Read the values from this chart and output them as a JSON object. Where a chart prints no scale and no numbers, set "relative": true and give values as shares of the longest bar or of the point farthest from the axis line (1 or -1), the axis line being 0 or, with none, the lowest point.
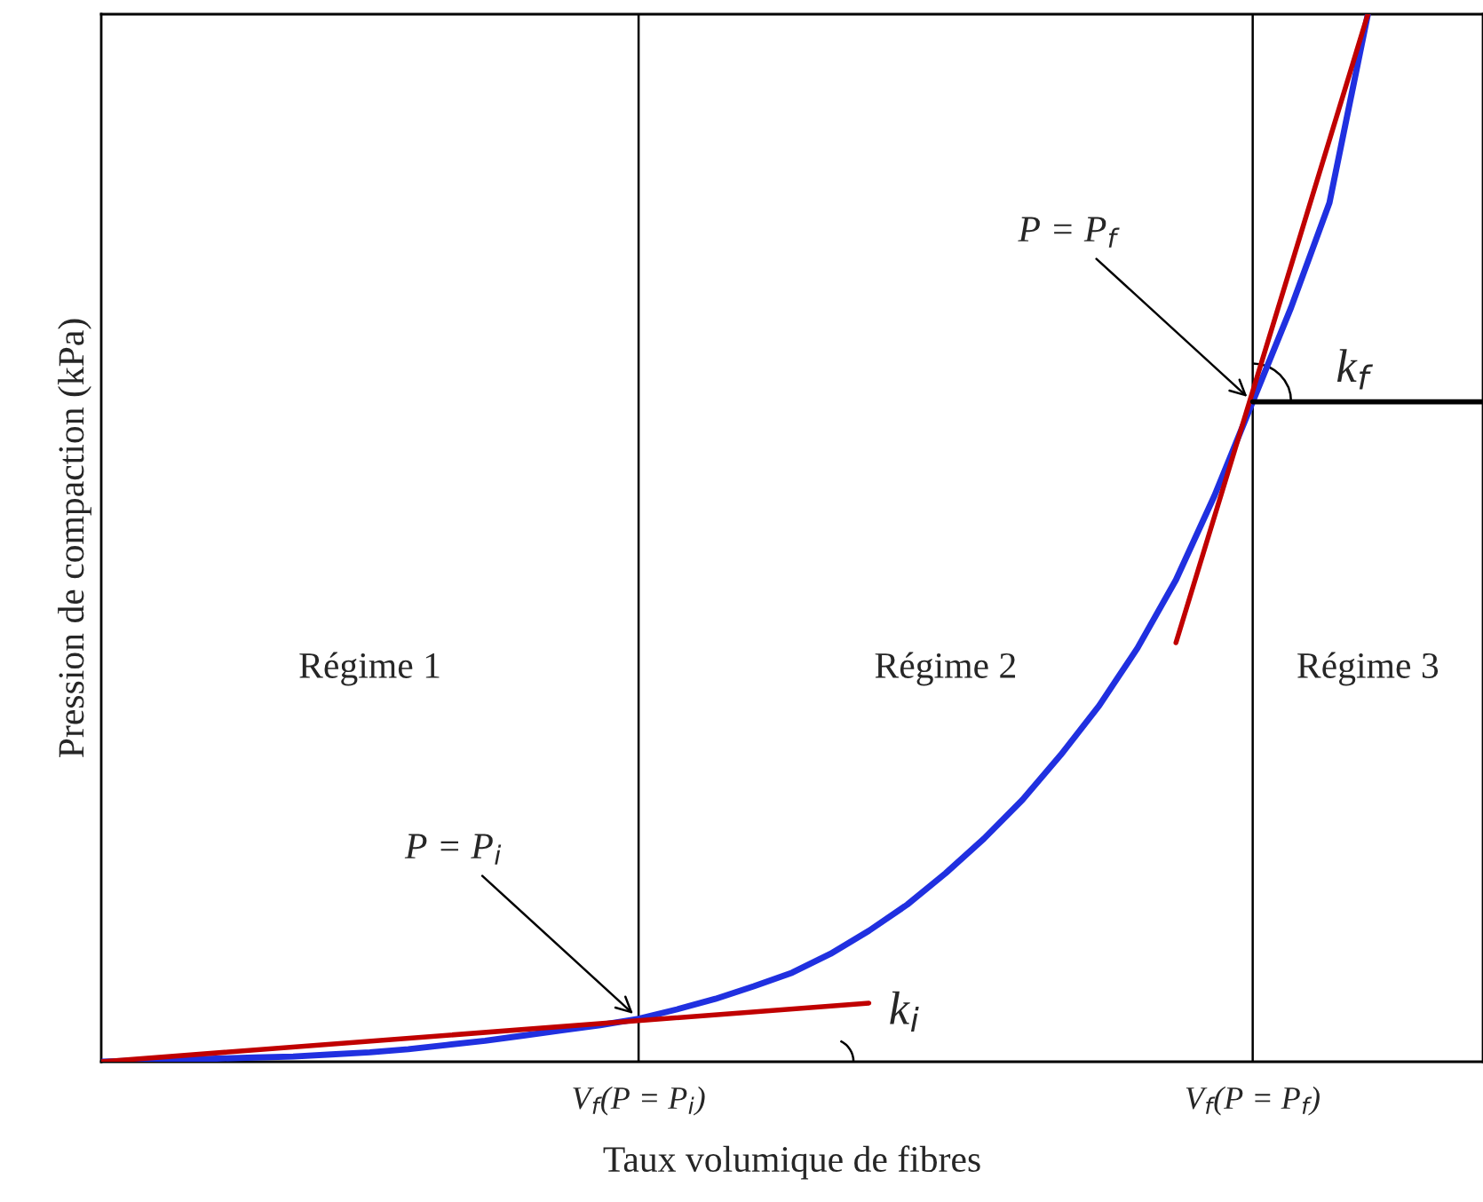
{
  "chart_data": {
    "type": "line",
    "relative": true,
    "xlabel": "Taux volumique de fibres",
    "ylabel": "Pression de compaction (kPa)",
    "categories": [
      null,
      null,
      null,
      null,
      null,
      null,
      null,
      null,
      null,
      null,
      null,
      null,
      null,
      null,
      "V$_{f}$(P = P$_{i}$)",
      null,
      null,
      null,
      null,
      null,
      null,
      null,
      null,
      null,
      null,
      null,
      null,
      null,
      null,
      null,
      "V$_{f}$(P = P$_{f}$)",
      null,
      null,
      null,
      null,
      null,
      null
    ],
    "tick_labels": "x",
    "ref_lines": [
      {
        "axis": "x",
        "value": "V$_{f}$(P = P$_{i}$)",
        "color": "#000000"
      },
      {
        "axis": "x",
        "value": "V$_{f}$(P = P$_{f}$)",
        "color": "#000000"
      }
    ],
    "legend": false,
    "marker": "none",
    "line_style": "solid",
    "series": [
      {
        "color": "#2030e0",
        "values": [
          0,
          0.001,
          0.002,
          0.003,
          0.004,
          0.005,
          0.007,
          0.009,
          0.012,
          0.016,
          0.02,
          0.025,
          0.03,
          0.035,
          0.041,
          0.05,
          0.06,
          0.072,
          0.085,
          0.103,
          0.125,
          0.15,
          0.18,
          0.213,
          0.25,
          0.293,
          0.34,
          0.395,
          0.46,
          0.54,
          0.63,
          0.72,
          0.82,
          1.0,
          null,
          null,
          null
        ]
      },
      {
        "color": "#c00000",
        "values": [
          0,
          null,
          null,
          null,
          null,
          null,
          null,
          null,
          null,
          null,
          null,
          null,
          null,
          null,
          null,
          null,
          null,
          null,
          null,
          null,
          0.056,
          null,
          null,
          null,
          null,
          null,
          null,
          null,
          null,
          null,
          null,
          null,
          null,
          null,
          null,
          null,
          null
        ]
      },
      {
        "color": "#c00000",
        "values": [
          null,
          null,
          null,
          null,
          null,
          null,
          null,
          null,
          null,
          null,
          null,
          null,
          null,
          null,
          null,
          null,
          null,
          null,
          null,
          null,
          null,
          null,
          null,
          null,
          null,
          null,
          null,
          null,
          0.4,
          null,
          null,
          null,
          null,
          1.0,
          null,
          null,
          null
        ]
      },
      {
        "color": "#000000",
        "values": [
          null,
          null,
          null,
          null,
          null,
          null,
          null,
          null,
          null,
          null,
          null,
          null,
          null,
          null,
          null,
          null,
          null,
          null,
          null,
          null,
          null,
          null,
          null,
          null,
          null,
          null,
          null,
          null,
          null,
          null,
          0.63,
          null,
          null,
          null,
          null,
          null,
          0.63
        ]
      }
    ],
    "annotations": [
      {
        "text": "P = P$_{i}$",
        "x": "V$_{f}$(P = P$_{i}$)",
        "y": 0.041
      },
      {
        "text": "P = P$_{f}$",
        "x": "V$_{f}$(P = P$_{f}$)",
        "y": 0.63
      },
      "Régime 1",
      "Régime 2",
      "Régime 3",
      "k$_{i}$",
      "k$_{f}$"
    ]
  }
}
